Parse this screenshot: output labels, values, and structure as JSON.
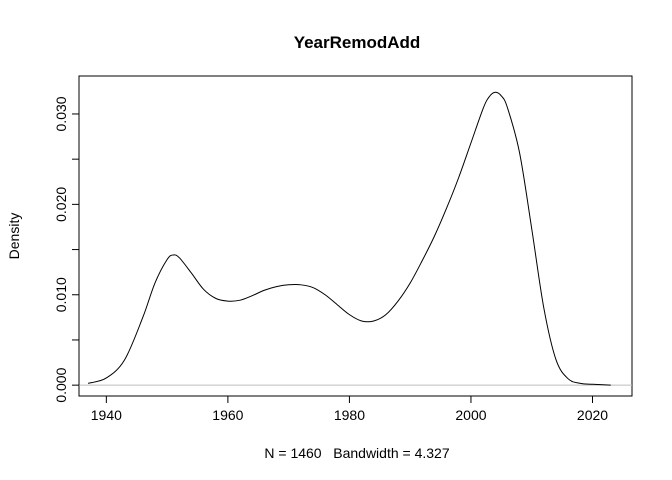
{
  "chart_data": {
    "type": "line",
    "title": "YearRemodAdd",
    "xlabel": "N = 1460   Bandwidth = 4.327",
    "ylabel": "Density",
    "xlim": [
      1935.5,
      2026.5
    ],
    "ylim": [
      -0.0012,
      0.0342
    ],
    "x_ticks": [
      1940,
      1960,
      1980,
      2000,
      2020
    ],
    "x_tick_labels": [
      "1940",
      "1960",
      "1980",
      "2000",
      "2020"
    ],
    "y_ticks": [
      0.0,
      0.005,
      0.01,
      0.015,
      0.02,
      0.025,
      0.03
    ],
    "y_tick_labels": [
      "0.000",
      "",
      "0.010",
      "",
      "0.020",
      "",
      "0.030"
    ],
    "grid": false,
    "legend": "none",
    "baseline": 0,
    "line_color": "#000000",
    "baseline_color": "#bebebe",
    "series": [
      {
        "x": [
          1937,
          1940,
          1943,
          1946,
          1948,
          1950,
          1951,
          1952,
          1954,
          1956,
          1958,
          1960,
          1962,
          1964,
          1966,
          1968,
          1970,
          1972,
          1974,
          1976,
          1978,
          1980,
          1982,
          1984,
          1986,
          1988,
          1990,
          1992,
          1994,
          1996,
          1998,
          2000,
          2002,
          2003,
          2004,
          2005,
          2006,
          2008,
          2010,
          2012,
          2014,
          2016,
          2018,
          2020,
          2023
        ],
        "y": [
          0.0002,
          0.0008,
          0.0028,
          0.0075,
          0.0113,
          0.0139,
          0.0144,
          0.0141,
          0.0124,
          0.0106,
          0.0096,
          0.0093,
          0.0094,
          0.0099,
          0.0105,
          0.0109,
          0.0111,
          0.0111,
          0.0108,
          0.01,
          0.0089,
          0.0078,
          0.0071,
          0.0071,
          0.0078,
          0.0093,
          0.0113,
          0.0138,
          0.0165,
          0.0196,
          0.023,
          0.0268,
          0.0306,
          0.0319,
          0.0324,
          0.032,
          0.0307,
          0.0257,
          0.0173,
          0.0085,
          0.0028,
          0.0007,
          0.0002,
          0.0001,
          0.0
        ]
      }
    ]
  }
}
